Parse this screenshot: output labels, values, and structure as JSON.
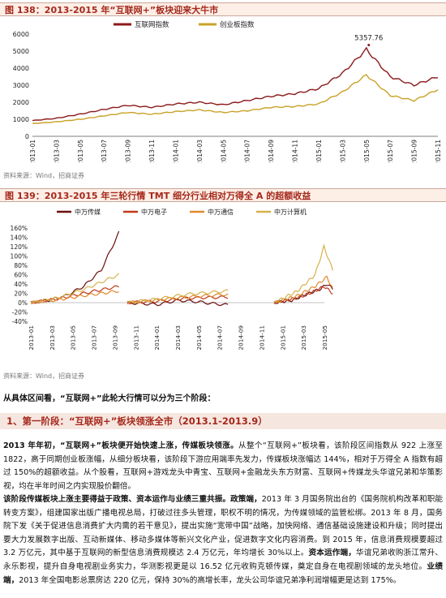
{
  "fig138": {
    "title": "图 138：2013-2015 年“互联网+”板块迎来大牛市",
    "source": "资料来源：Wind，招商证券"
  },
  "fig139": {
    "title": "图 139：2013-2015 年三轮行情 TMT 细分行业相对万得全 A 的超额收益",
    "source": "资料来源：Wind，招商证券"
  },
  "intro": "从具体区间看，“互联网+”此轮大行情可以分为三个阶段：",
  "section_heading": "1、第一阶段：“互联网+”板块领涨全市（2013.1-2013.9）",
  "para1": {
    "lead": "2013 年年初，“互联网+”板块便开始快速上涨，传媒板块领涨。",
    "rest": "从整个“互联网+”板块看，该阶段区间指数从 922 上涨至 1822，高于同期创业板涨幅，从细分板块看，该阶段下游应用端率先发力，传媒板块涨幅达 144%，相对于万得全 A 指数有超过 150%的超额收益。从个股看，互联网+游戏龙头中青宝、互联网+金融龙头东方财富、互联网+传媒龙头华谊兄弟和华策影视，均在半年时间之内实现股价翻倍。"
  },
  "para2": {
    "lead": "该阶段传媒板块上涨主要得益于政策、资本运作与业绩三重共振。政策端，",
    "rest": "2013 年 3 月国务院出台的《国务院机构改革和职能转变方案》，组建国家出版广播电视总局，打破过往多头管理，职权不明的情况，为传媒领域的监管松绑。2013 年 8 月，国务院下发《关于促进信息消费扩大内需的若干意见》，提出实施“宽带中国”战略，加快网络、通信基础设施建设和升级；同时提出要大力发展数字出版、互动新媒体、移动多媒体等新兴文化产业，促进数字文化内容消费。到 2015 年，信息消费规模要超过 3.2 万亿元，其中基于互联网的新型信息消费规模达 2.4 万亿元，年均增长 30%以上。",
    "lead2": "资本运作端，",
    "rest2": "华谊兄弟收购浙江常升、永乐影视，提升自身电视剧业务实力，华测影视更是以 16.52 亿元收购克顿传媒，奠定自身在电视剧领域的龙头地位。",
    "lead3": "业绩端，",
    "rest3": "2013 年全国电影总票房达 220 亿元，保持 30%的高增长率，龙头公司华谊兄弟净利润增幅更是达到 175%。"
  },
  "chart_data": [
    {
      "type": "line",
      "title": "",
      "legend_position": "top-center",
      "categories": [
        "2013-01",
        "2013-03",
        "2013-05",
        "2013-07",
        "2013-09",
        "2013-11",
        "2014-01",
        "2014-03",
        "2014-05",
        "2014-07",
        "2014-09",
        "2014-11",
        "2015-01",
        "2015-03",
        "2015-05",
        "2015-07",
        "2015-09",
        "2015-11"
      ],
      "ylim": [
        0,
        6000
      ],
      "yticks": [
        "0",
        "1000",
        "2000",
        "3000",
        "4000",
        "5000",
        "6000"
      ],
      "annotation": "5357.76",
      "series": [
        {
          "name": "互联网指数",
          "color": "#8b1a1a",
          "values": [
            922,
            1060,
            1300,
            1580,
            1820,
            1700,
            1900,
            2000,
            1850,
            2100,
            2350,
            2500,
            2800,
            3700,
            5100,
            3500,
            3000,
            3500
          ]
        },
        {
          "name": "创业板指数",
          "color": "#c9a227",
          "values": [
            750,
            850,
            1000,
            1200,
            1400,
            1300,
            1450,
            1550,
            1400,
            1500,
            1700,
            1750,
            1900,
            2600,
            3600,
            2400,
            2100,
            2750
          ]
        }
      ]
    },
    {
      "type": "line",
      "title": "",
      "legend_position": "top",
      "x_tick_labels": [
        "2013-01",
        "2013-03",
        "2013-05",
        "2013-07",
        "2013-09",
        "2013-11",
        "2014-01",
        "2014-03",
        "2014-05",
        "2014-07",
        "2014-09",
        "2014-11",
        "2015-01",
        "2015-03",
        "2015-05"
      ],
      "ylim": [
        -40,
        160
      ],
      "yticks": [
        "-40%",
        "-20%",
        "0%",
        "20%",
        "40%",
        "60%",
        "80%",
        "100%",
        "120%",
        "140%",
        "160%"
      ],
      "series": [
        {
          "name": "中万传媒",
          "color": "#6b0e0e",
          "segments": [
            [
              [
                0,
                0
              ],
              [
                0.2,
                5
              ],
              [
                0.4,
                15
              ],
              [
                0.6,
                35
              ],
              [
                0.8,
                70
              ],
              [
                1,
                150
              ]
            ],
            [
              [
                0,
                0
              ],
              [
                0.3,
                -4
              ],
              [
                0.5,
                5
              ],
              [
                0.7,
                2
              ],
              [
                0.85,
                -2
              ],
              [
                1,
                -5
              ]
            ],
            [
              [
                0,
                0
              ],
              [
                0.3,
                5
              ],
              [
                0.6,
                20
              ],
              [
                0.8,
                30
              ],
              [
                0.9,
                40
              ],
              [
                1,
                30
              ]
            ]
          ]
        },
        {
          "name": "中万电子",
          "color": "#c0391b",
          "segments": [
            [
              [
                0,
                0
              ],
              [
                0.3,
                8
              ],
              [
                0.6,
                20
              ],
              [
                1,
                35
              ]
            ],
            [
              [
                0,
                0
              ],
              [
                0.3,
                3
              ],
              [
                0.6,
                10
              ],
              [
                1,
                12
              ]
            ],
            [
              [
                0,
                0
              ],
              [
                0.4,
                10
              ],
              [
                0.7,
                25
              ],
              [
                0.85,
                35
              ],
              [
                1,
                20
              ]
            ]
          ]
        },
        {
          "name": "中万通信",
          "color": "#e0892e",
          "segments": [
            [
              [
                0,
                0
              ],
              [
                0.3,
                6
              ],
              [
                0.6,
                15
              ],
              [
                1,
                25
              ]
            ],
            [
              [
                0,
                0
              ],
              [
                0.3,
                6
              ],
              [
                0.6,
                12
              ],
              [
                1,
                18
              ]
            ],
            [
              [
                0,
                0
              ],
              [
                0.4,
                15
              ],
              [
                0.7,
                35
              ],
              [
                0.9,
                55
              ],
              [
                1,
                30
              ]
            ]
          ]
        },
        {
          "name": "中万计算机",
          "color": "#d6b14a",
          "segments": [
            [
              [
                0,
                0
              ],
              [
                0.3,
                10
              ],
              [
                0.6,
                28
              ],
              [
                1,
                60
              ]
            ],
            [
              [
                0,
                0
              ],
              [
                0.3,
                8
              ],
              [
                0.6,
                18
              ],
              [
                1,
                25
              ]
            ],
            [
              [
                0,
                0
              ],
              [
                0.4,
                25
              ],
              [
                0.7,
                60
              ],
              [
                0.85,
                120
              ],
              [
                1,
                70
              ]
            ]
          ]
        }
      ]
    }
  ]
}
